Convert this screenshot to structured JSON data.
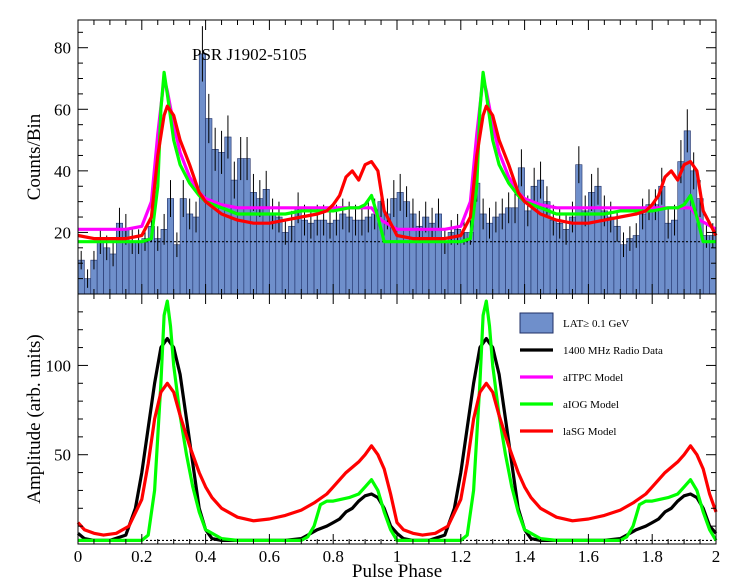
{
  "chart_data": [
    {
      "type": "bar",
      "panel": "top",
      "title": "PSR J1902-5105",
      "xlabel": "",
      "ylabel": "Counts/Bin",
      "xlim": [
        0,
        2
      ],
      "ylim": [
        0,
        89
      ],
      "yticks": [
        20,
        40,
        60,
        80
      ],
      "bin_width": 0.02,
      "baseline": 17,
      "histogram_values": [
        11,
        5,
        11,
        17,
        15,
        13,
        23,
        21,
        17,
        17,
        18,
        22,
        18,
        21,
        31,
        16,
        31,
        26,
        25,
        78,
        57,
        47,
        46,
        51,
        37,
        44,
        44,
        33,
        31,
        34,
        26,
        25,
        20,
        22,
        28,
        24,
        23,
        24,
        24,
        23,
        24,
        26,
        25,
        24,
        24,
        25,
        26,
        30,
        26,
        31,
        33,
        30,
        26,
        22,
        25,
        23,
        26,
        17,
        20,
        21,
        20,
        20,
        36,
        26,
        23,
        25,
        26,
        28,
        28,
        41,
        27,
        35,
        37,
        30,
        24,
        23,
        21,
        25,
        42,
        27,
        33,
        35,
        27,
        25,
        22,
        16,
        18,
        19,
        26,
        29,
        29,
        35,
        23,
        24,
        43,
        53,
        40,
        31,
        19,
        19
      ],
      "errors": [
        3,
        3,
        3,
        4,
        4,
        4,
        5,
        5,
        4,
        4,
        4,
        5,
        4,
        5,
        6,
        4,
        6,
        5,
        5,
        9,
        8,
        7,
        7,
        7,
        6,
        7,
        7,
        6,
        6,
        6,
        5,
        5,
        4,
        5,
        5,
        5,
        5,
        5,
        5,
        5,
        5,
        5,
        5,
        5,
        5,
        5,
        5,
        5,
        5,
        6,
        6,
        5,
        5,
        5,
        5,
        5,
        5,
        4,
        4,
        5,
        4,
        4,
        6,
        5,
        5,
        5,
        5,
        5,
        5,
        6,
        5,
        6,
        6,
        5,
        5,
        5,
        5,
        5,
        6,
        5,
        6,
        6,
        5,
        5,
        5,
        4,
        4,
        4,
        5,
        5,
        5,
        6,
        5,
        5,
        7,
        7,
        6,
        6,
        4,
        4
      ],
      "series": [
        {
          "name": "aITPC Model",
          "x": [
            0,
            0.05,
            0.1,
            0.15,
            0.2,
            0.23,
            0.25,
            0.27,
            0.28,
            0.3,
            0.32,
            0.35,
            0.38,
            0.4,
            0.45,
            0.5,
            0.55,
            0.6,
            0.65,
            0.7,
            0.75,
            0.8,
            0.85,
            0.9,
            0.92,
            0.95,
            1.0,
            1.05,
            1.1,
            1.15,
            1.2,
            1.23,
            1.25,
            1.27,
            1.28,
            1.3,
            1.32,
            1.35,
            1.38,
            1.4,
            1.45,
            1.5,
            1.55,
            1.6,
            1.65,
            1.7,
            1.75,
            1.8,
            1.85,
            1.9,
            1.92,
            1.95,
            2.0
          ],
          "values": [
            21,
            21,
            21,
            21,
            22,
            30,
            52,
            70,
            66,
            55,
            46,
            38,
            33,
            31,
            29,
            28,
            28,
            28,
            28,
            28,
            28,
            28,
            28,
            28,
            28,
            24,
            21,
            21,
            21,
            21,
            22,
            30,
            52,
            70,
            66,
            55,
            46,
            38,
            33,
            31,
            29,
            28,
            28,
            28,
            28,
            28,
            28,
            28,
            28,
            28,
            28,
            24,
            21
          ]
        },
        {
          "name": "aIOG Model",
          "x": [
            0,
            0.05,
            0.1,
            0.15,
            0.2,
            0.23,
            0.25,
            0.26,
            0.27,
            0.28,
            0.3,
            0.32,
            0.35,
            0.38,
            0.4,
            0.45,
            0.5,
            0.55,
            0.6,
            0.65,
            0.7,
            0.75,
            0.8,
            0.85,
            0.88,
            0.9,
            0.92,
            0.94,
            0.96,
            1.0,
            1.05,
            1.1,
            1.15,
            1.2,
            1.23,
            1.25,
            1.26,
            1.27,
            1.28,
            1.3,
            1.32,
            1.35,
            1.38,
            1.4,
            1.45,
            1.5,
            1.55,
            1.6,
            1.65,
            1.7,
            1.75,
            1.8,
            1.85,
            1.88,
            1.9,
            1.92,
            1.94,
            1.96,
            2.0
          ],
          "values": [
            17,
            17,
            17,
            17,
            17,
            18,
            35,
            60,
            72,
            65,
            50,
            42,
            36,
            32,
            30,
            28,
            26,
            26,
            26,
            26,
            27,
            27,
            27,
            28,
            28,
            29,
            32,
            25,
            17,
            17,
            17,
            17,
            17,
            17,
            18,
            35,
            60,
            72,
            65,
            50,
            42,
            36,
            32,
            30,
            28,
            26,
            26,
            26,
            26,
            27,
            27,
            27,
            28,
            28,
            29,
            32,
            25,
            17,
            17
          ]
        },
        {
          "name": "laSG Model",
          "x": [
            0,
            0.05,
            0.1,
            0.15,
            0.2,
            0.23,
            0.25,
            0.27,
            0.28,
            0.3,
            0.32,
            0.35,
            0.38,
            0.4,
            0.45,
            0.5,
            0.55,
            0.6,
            0.65,
            0.7,
            0.75,
            0.78,
            0.8,
            0.82,
            0.84,
            0.86,
            0.88,
            0.9,
            0.92,
            0.94,
            0.96,
            1.0,
            1.05,
            1.1,
            1.15,
            1.2,
            1.23,
            1.25,
            1.27,
            1.28,
            1.3,
            1.32,
            1.35,
            1.38,
            1.4,
            1.45,
            1.5,
            1.55,
            1.6,
            1.65,
            1.7,
            1.75,
            1.78,
            1.8,
            1.82,
            1.84,
            1.86,
            1.88,
            1.9,
            1.92,
            1.94,
            1.96,
            2.0
          ],
          "values": [
            19,
            18,
            18,
            18,
            19,
            25,
            45,
            58,
            61,
            58,
            50,
            42,
            33,
            30,
            26,
            24,
            23,
            23,
            24,
            25,
            26,
            27,
            29,
            32,
            38,
            40,
            37,
            42,
            43,
            40,
            27,
            19,
            18,
            18,
            18,
            19,
            25,
            45,
            58,
            61,
            58,
            50,
            42,
            33,
            30,
            26,
            24,
            23,
            23,
            24,
            25,
            26,
            27,
            29,
            32,
            38,
            40,
            37,
            42,
            43,
            40,
            27,
            19
          ]
        }
      ]
    },
    {
      "type": "line",
      "panel": "bottom",
      "xlabel": "Pulse Phase",
      "ylabel": "Amplitude (arb. units)",
      "xlim": [
        0,
        2
      ],
      "ylim": [
        0,
        140
      ],
      "xticks": [
        0,
        0.2,
        0.4,
        0.6,
        0.8,
        1,
        1.2,
        1.4,
        1.6,
        1.8,
        2
      ],
      "xtick_labels": [
        "0",
        "0.2",
        "0.4",
        "0.6",
        "0.8",
        "1",
        "1.2",
        "1.4",
        "1.6",
        "1.8",
        "2"
      ],
      "yticks": [
        50,
        100
      ],
      "baseline": 2,
      "series": [
        {
          "name": "1400 MHz Radio Data",
          "x": [
            0,
            0.02,
            0.05,
            0.1,
            0.15,
            0.18,
            0.2,
            0.22,
            0.24,
            0.26,
            0.28,
            0.3,
            0.32,
            0.34,
            0.36,
            0.38,
            0.4,
            0.42,
            0.45,
            0.5,
            0.55,
            0.6,
            0.65,
            0.7,
            0.72,
            0.75,
            0.78,
            0.8,
            0.82,
            0.84,
            0.86,
            0.88,
            0.9,
            0.92,
            0.94,
            0.96,
            0.98,
            1.0,
            1.02,
            1.05,
            1.1,
            1.15,
            1.18,
            1.2,
            1.22,
            1.24,
            1.26,
            1.28,
            1.3,
            1.32,
            1.34,
            1.36,
            1.38,
            1.4,
            1.42,
            1.45,
            1.5,
            1.55,
            1.6,
            1.65,
            1.7,
            1.72,
            1.75,
            1.78,
            1.8,
            1.82,
            1.84,
            1.86,
            1.88,
            1.9,
            1.92,
            1.94,
            1.96,
            1.98,
            2.0
          ],
          "values": [
            6,
            3,
            2,
            2,
            5,
            20,
            40,
            65,
            90,
            110,
            115,
            110,
            95,
            70,
            45,
            20,
            8,
            3,
            2,
            2,
            2,
            2,
            2,
            3,
            5,
            8,
            10,
            12,
            14,
            18,
            20,
            24,
            27,
            28,
            26,
            20,
            10,
            6,
            3,
            2,
            2,
            5,
            20,
            40,
            65,
            90,
            110,
            115,
            110,
            95,
            70,
            45,
            20,
            8,
            3,
            2,
            2,
            2,
            2,
            2,
            3,
            5,
            8,
            10,
            12,
            14,
            18,
            20,
            24,
            27,
            28,
            26,
            20,
            10,
            6
          ]
        },
        {
          "name": "aIOG Model",
          "x": [
            0,
            0.05,
            0.1,
            0.15,
            0.2,
            0.22,
            0.24,
            0.26,
            0.27,
            0.28,
            0.29,
            0.3,
            0.32,
            0.34,
            0.36,
            0.38,
            0.4,
            0.45,
            0.5,
            0.55,
            0.6,
            0.65,
            0.7,
            0.72,
            0.74,
            0.76,
            0.78,
            0.8,
            0.85,
            0.88,
            0.9,
            0.92,
            0.94,
            0.96,
            0.98,
            1.0,
            1.05,
            1.1,
            1.15,
            1.2,
            1.22,
            1.24,
            1.26,
            1.27,
            1.28,
            1.29,
            1.3,
            1.32,
            1.34,
            1.36,
            1.38,
            1.4,
            1.45,
            1.5,
            1.55,
            1.6,
            1.65,
            1.7,
            1.72,
            1.74,
            1.76,
            1.78,
            1.8,
            1.85,
            1.88,
            1.9,
            1.92,
            1.94,
            1.96,
            1.98,
            2.0
          ],
          "values": [
            2,
            2,
            2,
            2,
            2,
            5,
            30,
            90,
            128,
            136,
            122,
            100,
            72,
            50,
            32,
            18,
            8,
            3,
            2,
            2,
            2,
            2,
            2,
            4,
            10,
            22,
            24,
            24,
            26,
            28,
            32,
            36,
            30,
            18,
            8,
            2,
            2,
            2,
            2,
            2,
            5,
            30,
            90,
            128,
            136,
            122,
            100,
            72,
            50,
            32,
            18,
            8,
            3,
            2,
            2,
            2,
            2,
            2,
            4,
            10,
            22,
            24,
            24,
            26,
            28,
            32,
            36,
            30,
            18,
            8,
            2
          ]
        },
        {
          "name": "laSG Model",
          "x": [
            0,
            0.02,
            0.05,
            0.08,
            0.12,
            0.16,
            0.2,
            0.22,
            0.24,
            0.26,
            0.28,
            0.3,
            0.32,
            0.35,
            0.38,
            0.4,
            0.42,
            0.45,
            0.5,
            0.55,
            0.6,
            0.65,
            0.7,
            0.74,
            0.78,
            0.8,
            0.84,
            0.88,
            0.9,
            0.92,
            0.94,
            0.96,
            0.98,
            1.0,
            1.02,
            1.05,
            1.08,
            1.12,
            1.16,
            1.2,
            1.22,
            1.24,
            1.26,
            1.28,
            1.3,
            1.32,
            1.35,
            1.38,
            1.4,
            1.42,
            1.45,
            1.5,
            1.55,
            1.6,
            1.65,
            1.7,
            1.74,
            1.78,
            1.8,
            1.84,
            1.88,
            1.9,
            1.92,
            1.94,
            1.96,
            1.98,
            2.0
          ],
          "values": [
            12,
            8,
            6,
            5,
            6,
            10,
            25,
            45,
            70,
            85,
            90,
            85,
            72,
            55,
            40,
            32,
            26,
            20,
            15,
            13,
            14,
            16,
            19,
            23,
            28,
            32,
            40,
            46,
            50,
            55,
            50,
            42,
            28,
            12,
            8,
            6,
            5,
            6,
            10,
            25,
            45,
            70,
            85,
            90,
            85,
            72,
            55,
            40,
            32,
            26,
            20,
            15,
            13,
            14,
            16,
            19,
            23,
            28,
            32,
            40,
            46,
            50,
            55,
            50,
            42,
            28,
            18
          ]
        }
      ],
      "legend": {
        "placement": "top-right",
        "entries": [
          {
            "label": "LAT≥ 0.1 GeV",
            "kind": "box"
          },
          {
            "label": "1400 MHz Radio Data",
            "kind": "line"
          },
          {
            "label": "aITPC Model",
            "kind": "line"
          },
          {
            "label": "aIOG Model",
            "kind": "line"
          },
          {
            "label": "laSG Model",
            "kind": "line"
          }
        ]
      }
    }
  ],
  "colors": {
    "bar_fill": "#6f8fcb",
    "bar_edge": "#1f2f66",
    "radio": "#000000",
    "aitpc": "#ff00ff",
    "aiog": "#00ff00",
    "lasg": "#ff0000"
  }
}
